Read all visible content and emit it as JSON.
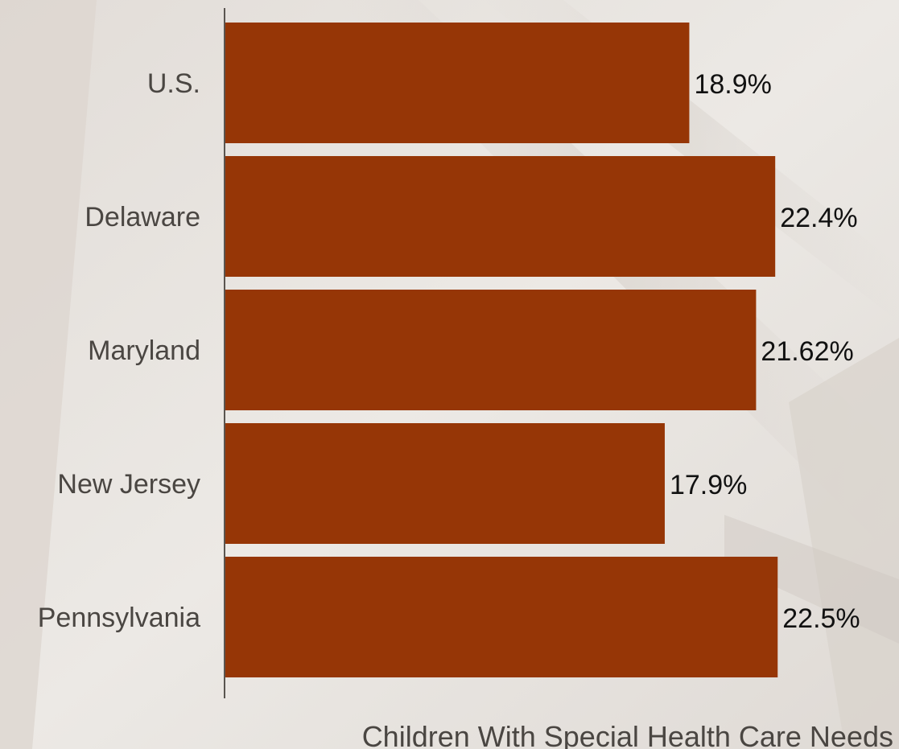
{
  "colors": {
    "bar": "#963606",
    "axis": "#5a5550",
    "category_text": "#4a4642",
    "value_text": "#111111",
    "background": "#e9e5e1"
  },
  "chart_data": {
    "type": "bar",
    "orientation": "horizontal",
    "categories": [
      "U.S.",
      "Delaware",
      "Maryland",
      "New Jersey",
      "Pennsylvania"
    ],
    "values": [
      18.9,
      22.4,
      21.62,
      17.9,
      22.5
    ],
    "value_labels": [
      "18.9%",
      "22.4%",
      "21.62%",
      "17.9%",
      "22.5%"
    ],
    "xlabel": "Children With Special Health Care Needs",
    "xlim": [
      0,
      25
    ],
    "grid": false,
    "legend": "none"
  }
}
